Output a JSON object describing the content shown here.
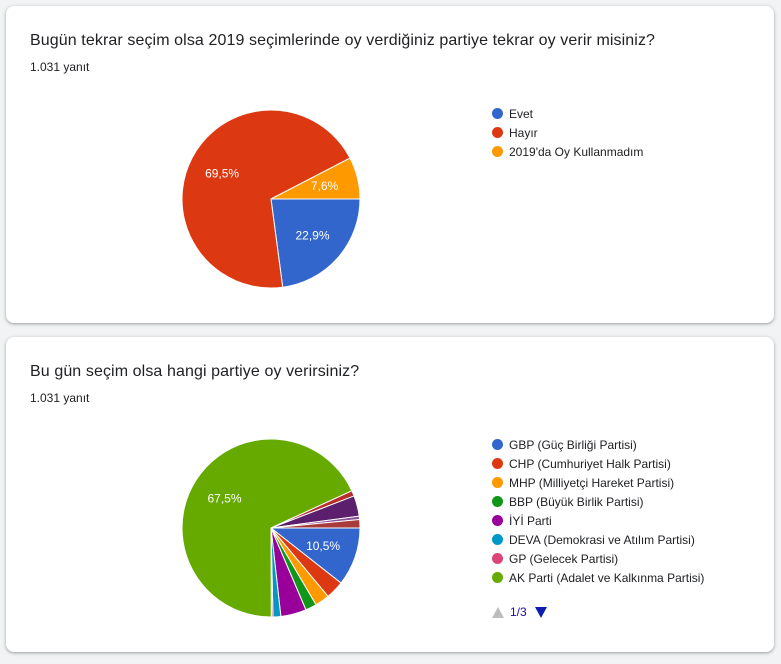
{
  "chart_data": [
    {
      "type": "pie",
      "title": "Bugün tekrar seçim olsa 2019 seçimlerinde oy verdiğiniz partiye tekrar oy verir misiniz?",
      "subtitle": "1.031 yanıt",
      "categories": [
        "Evet",
        "Hayır",
        "2019'da Oy Kullanmadım"
      ],
      "values": [
        22.9,
        69.5,
        7.6
      ],
      "labels": [
        "22,9%",
        "69,5%",
        "7,6%"
      ],
      "colors": [
        "#3366cc",
        "#dc3912",
        "#ff9900"
      ],
      "legend": "right"
    },
    {
      "type": "pie",
      "title": "Bu gün seçim olsa hangi partiye oy verirsiniz?",
      "subtitle": "1.031 yanıt",
      "categories": [
        "GBP (Güç Birliği Partisi)",
        "CHP (Cumhuriyet Halk Partisi)",
        "MHP (Milliyetçi Hareket Partisi)",
        "BBP (Büyük Birlik Partisi)",
        "İYİ Parti",
        "DEVA (Demokrasi ve Atılım Partisi)",
        "GP (Gelecek Partisi)",
        "AK Parti (Adalet ve Kalkınma Partisi)",
        "",
        "",
        "",
        ""
      ],
      "values": [
        10.5,
        3.3,
        2.6,
        2.0,
        4.6,
        1.4,
        0.3,
        67.5,
        1.0,
        3.7,
        0.6,
        1.5
      ],
      "labels": [
        "10,5%",
        "",
        "",
        "",
        "",
        "",
        "",
        "67,5%",
        "",
        "",
        "",
        ""
      ],
      "colors": [
        "#3366cc",
        "#dc3912",
        "#ff9900",
        "#109618",
        "#990099",
        "#0099c6",
        "#dd4477",
        "#66aa00",
        "#b82e2e",
        "#5b1f6e",
        "#8c4f9c",
        "#a83b3b"
      ],
      "legend_visible_count": 8,
      "legend": "right",
      "pager": {
        "label": "1/3"
      }
    }
  ]
}
